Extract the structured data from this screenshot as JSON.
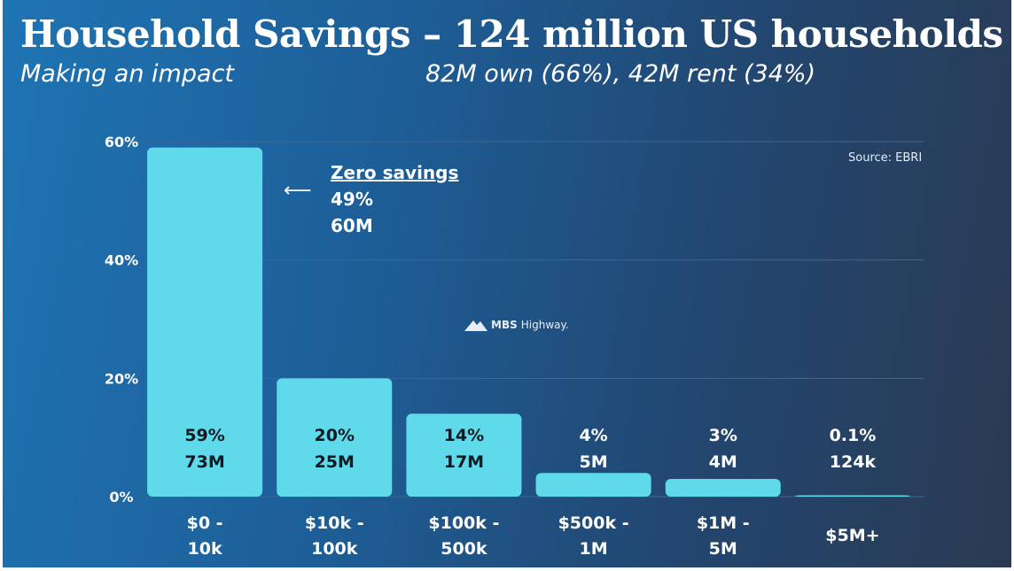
{
  "slide": {
    "title": "Household Savings – 124 million US households",
    "subtitle_left": "Making an impact",
    "subtitle_right": "82M own (66%), 42M rent (34%)",
    "source": "Source: EBRI",
    "watermark": {
      "brand": "MBS",
      "name": "Highway."
    },
    "annotation": {
      "heading": "Zero savings",
      "line1": "49%",
      "line2": "60M",
      "arrow": "⟵"
    }
  },
  "colors": {
    "bar": "#5fdaeb",
    "gridline": "#3d6791",
    "text": "#ffffff",
    "label": "#101820"
  },
  "chart_data": {
    "type": "bar",
    "categories": [
      [
        "$0 -",
        "10k"
      ],
      [
        "$10k -",
        "100k"
      ],
      [
        "$100k -",
        "500k"
      ],
      [
        "$500k -",
        "1M"
      ],
      [
        "$1M -",
        "5M"
      ],
      [
        "$5M+"
      ]
    ],
    "values": [
      59,
      20,
      14,
      4,
      3,
      0.1
    ],
    "value_labels": [
      "59%",
      "20%",
      "14%",
      "4%",
      "3%",
      "0.1%"
    ],
    "count_labels": [
      "73M",
      "25M",
      "17M",
      "5M",
      "4M",
      "124k"
    ],
    "ylim": [
      0,
      60
    ],
    "yticks": [
      0,
      20,
      40,
      60
    ],
    "ytick_labels": [
      "0%",
      "20%",
      "40%",
      "60%"
    ],
    "grid": true
  }
}
